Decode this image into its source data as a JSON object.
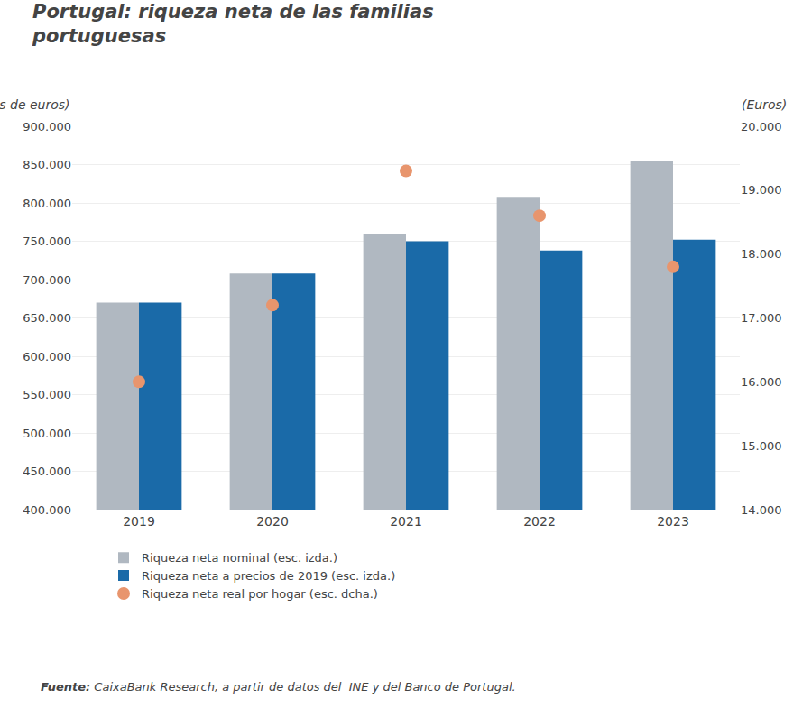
{
  "chart_data": {
    "type": "bar",
    "title": "Portugal: riqueza neta de las familias\nportuguesas",
    "ylabel": "(Millones de euros)",
    "y2label": "(Euros)",
    "categories": [
      "2019",
      "2020",
      "2021",
      "2022",
      "2023"
    ],
    "series": [
      {
        "name": "Riqueza neta nominal (esc. izda.)",
        "type": "bar",
        "color": "#b0b8c1",
        "values": [
          670000,
          708000,
          760000,
          808000,
          855000
        ]
      },
      {
        "name": "Riqueza neta a precios de 2019 (esc. izda.)",
        "type": "bar",
        "color": "#1a6aa8",
        "values": [
          670000,
          708000,
          750000,
          738000,
          752000
        ]
      },
      {
        "name": "Riqueza neta real por hogar (esc. dcha.)",
        "type": "scatter",
        "marker": "circle",
        "axis": "y2",
        "color": "#e8956d",
        "values": [
          16000,
          17200,
          19300,
          18600,
          17800
        ]
      }
    ],
    "ylim": [
      400000,
      900000
    ],
    "yticks": [
      {
        "value": 400000,
        "label": "400.000"
      },
      {
        "value": 450000,
        "label": "450.000"
      },
      {
        "value": 500000,
        "label": "500.000"
      },
      {
        "value": 550000,
        "label": "550.000"
      },
      {
        "value": 600000,
        "label": "600.000"
      },
      {
        "value": 650000,
        "label": "650.000"
      },
      {
        "value": 700000,
        "label": "700.000"
      },
      {
        "value": 750000,
        "label": "750.000"
      },
      {
        "value": 800000,
        "label": "800.000"
      },
      {
        "value": 850000,
        "label": "850.000"
      },
      {
        "value": 900000,
        "label": "900.000"
      }
    ],
    "y2lim": [
      14000,
      20000
    ],
    "y2ticks": [
      {
        "value": 14000,
        "label": "14.000"
      },
      {
        "value": 15000,
        "label": "15.000"
      },
      {
        "value": 16000,
        "label": "16.000"
      },
      {
        "value": 17000,
        "label": "17.000"
      },
      {
        "value": 18000,
        "label": "18.000"
      },
      {
        "value": 19000,
        "label": "19.000"
      },
      {
        "value": 20000,
        "label": "20.000"
      }
    ],
    "grid": true,
    "legend": "bottom left",
    "source_label": "Fuente:",
    "source": "CaixaBank Research, a partir de datos del  INE y del Banco de Portugal."
  }
}
